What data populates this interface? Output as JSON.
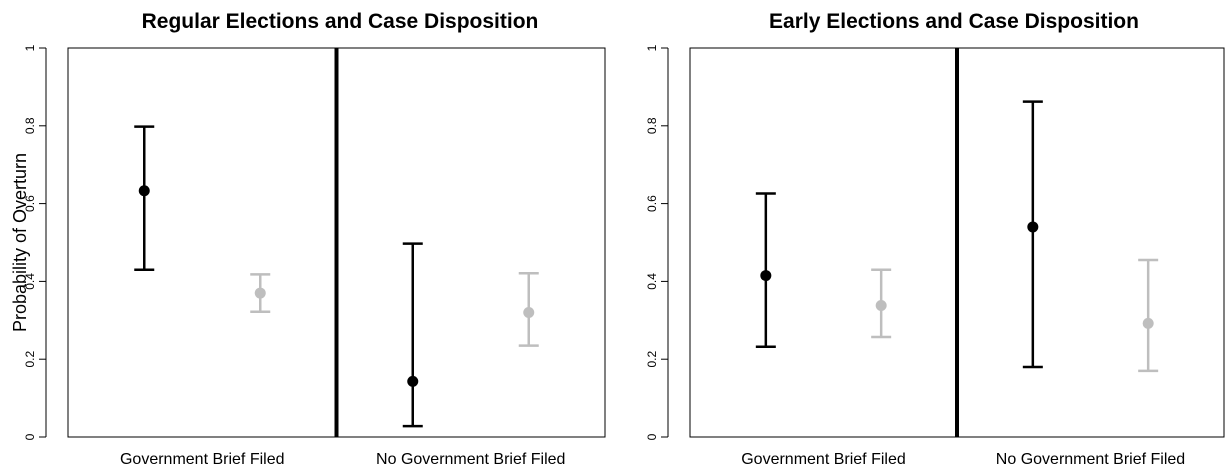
{
  "chart_data": [
    {
      "type": "scatter",
      "title": "Regular Elections and Case Disposition",
      "ylabel": "Probability of Overturn",
      "xlabel": "",
      "ylim": [
        0,
        1
      ],
      "yticks": [
        "0",
        "0.2",
        "0.4",
        "0.6",
        "0.8",
        "1"
      ],
      "categories": [
        "Government Brief Filed",
        "No Government Brief Filed"
      ],
      "grid": false,
      "series": [
        {
          "color": "#000000",
          "points": [
            {
              "category": "Government Brief Filed",
              "estimate": 0.633,
              "lower": 0.43,
              "upper": 0.798
            },
            {
              "category": "No Government Brief Filed",
              "estimate": 0.143,
              "lower": 0.028,
              "upper": 0.497
            }
          ]
        },
        {
          "color": "#bebebe",
          "points": [
            {
              "category": "Government Brief Filed",
              "estimate": 0.37,
              "lower": 0.322,
              "upper": 0.418
            },
            {
              "category": "No Government Brief Filed",
              "estimate": 0.32,
              "lower": 0.235,
              "upper": 0.421
            }
          ]
        }
      ]
    },
    {
      "type": "scatter",
      "title": "Early Elections and Case Disposition",
      "ylabel": "",
      "xlabel": "",
      "ylim": [
        0,
        1
      ],
      "yticks": [
        "0",
        "0.2",
        "0.4",
        "0.6",
        "0.8",
        "1"
      ],
      "categories": [
        "Government Brief Filed",
        "No Government Brief Filed"
      ],
      "grid": false,
      "series": [
        {
          "color": "#000000",
          "points": [
            {
              "category": "Government Brief Filed",
              "estimate": 0.415,
              "lower": 0.232,
              "upper": 0.626
            },
            {
              "category": "No Government Brief Filed",
              "estimate": 0.54,
              "lower": 0.18,
              "upper": 0.862
            }
          ]
        },
        {
          "color": "#bebebe",
          "points": [
            {
              "category": "Government Brief Filed",
              "estimate": 0.338,
              "lower": 0.257,
              "upper": 0.43
            },
            {
              "category": "No Government Brief Filed",
              "estimate": 0.292,
              "lower": 0.17,
              "upper": 0.455
            }
          ]
        }
      ]
    }
  ]
}
